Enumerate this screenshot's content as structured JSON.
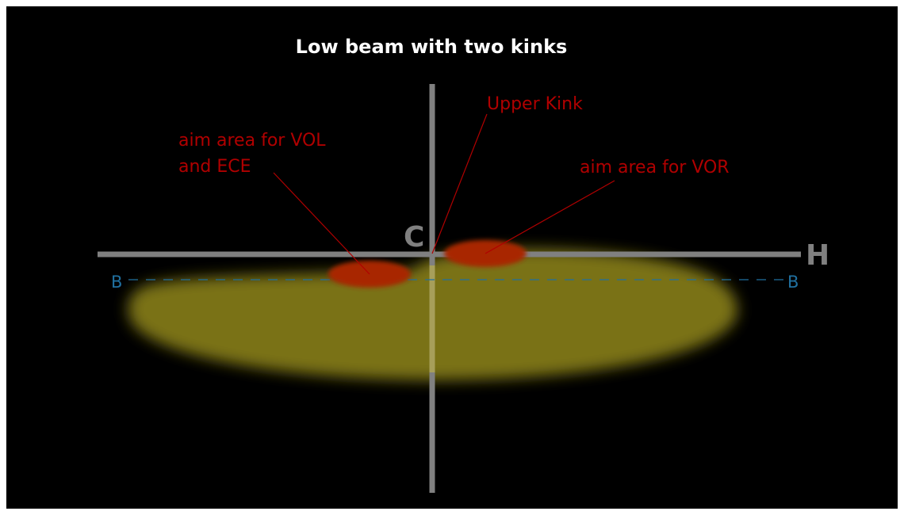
{
  "title": "Low beam with two kinks",
  "labels": {
    "upper_kink": "Upper Kink",
    "aim_vol": [
      "aim area for VOL",
      "and ECE"
    ],
    "aim_vor": "aim area for VOR"
  },
  "axes": {
    "c": "C",
    "h": "H",
    "b_left": "B",
    "b_right": "B"
  }
}
